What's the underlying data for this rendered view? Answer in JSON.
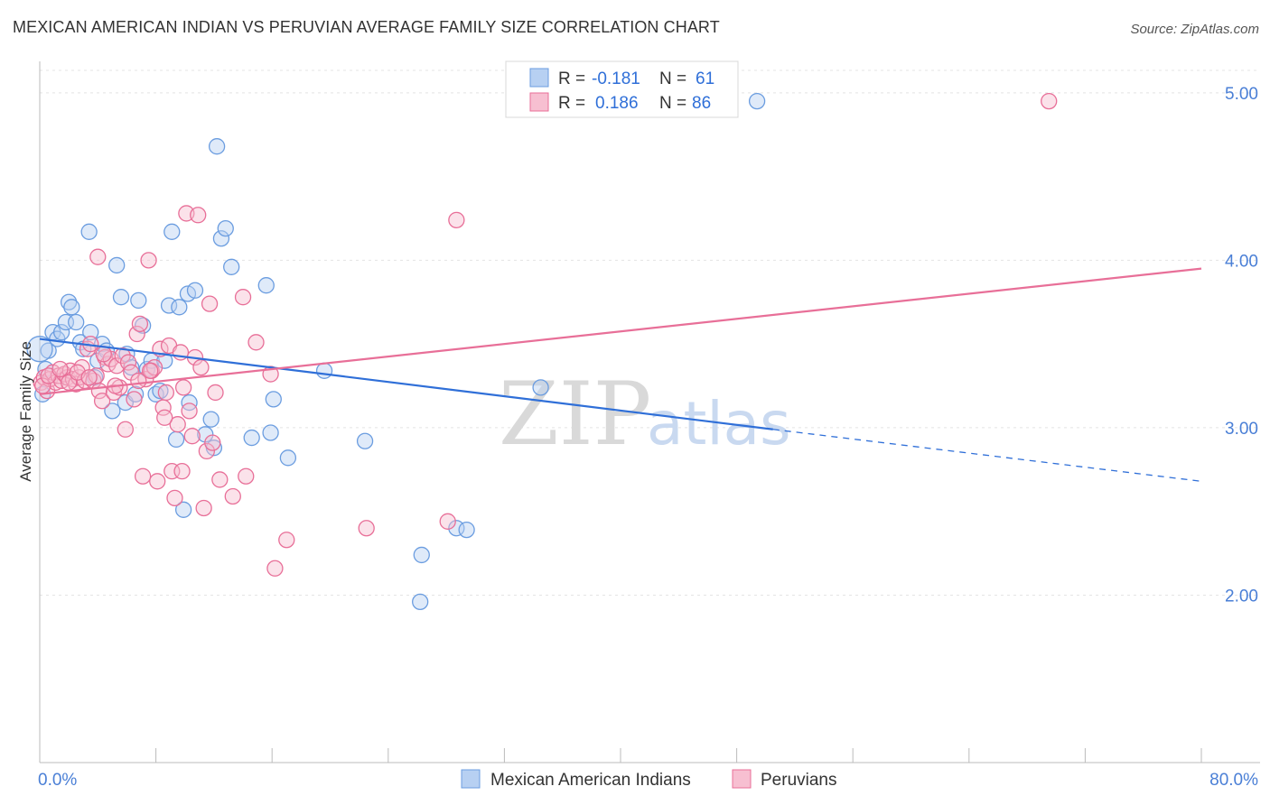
{
  "title": "MEXICAN AMERICAN INDIAN VS PERUVIAN AVERAGE FAMILY SIZE CORRELATION CHART",
  "source": "Source: ZipAtlas.com",
  "watermark": {
    "left": "ZIP",
    "right": "atlas"
  },
  "legend": {
    "rows": [
      {
        "r_label": "R =",
        "r_value": "-0.181",
        "n_label": "N =",
        "n_value": "61",
        "color": "#a9c8f0"
      },
      {
        "r_label": "R =",
        "r_value": "0.186",
        "n_label": "N =",
        "n_value": "86",
        "color": "#f7b8cc"
      }
    ]
  },
  "chart_data": {
    "type": "scatter",
    "title": "MEXICAN AMERICAN INDIAN VS PERUVIAN AVERAGE FAMILY SIZE CORRELATION CHART",
    "xlabel": "",
    "ylabel": "Average Family Size",
    "xlim": [
      0,
      80
    ],
    "ylim": [
      1.0,
      5.15
    ],
    "x_ticks": [
      "0.0%",
      "80.0%"
    ],
    "y_ticks": [
      "2.00",
      "3.00",
      "4.00",
      "5.00"
    ],
    "y_tick_values": [
      2.0,
      3.0,
      4.0,
      5.0
    ],
    "grid": true,
    "legend_position": "top-center",
    "series": [
      {
        "name": "Mexican American Indians",
        "color": "#6b9de0",
        "fill": "#b7d0f2",
        "trend": {
          "x0": 0.0,
          "y0": 3.53,
          "x1": 50.5,
          "y1": 2.99,
          "dash_x1": 80.0,
          "dash_y1": 2.68
        },
        "points": [
          [
            0.2,
            3.2
          ],
          [
            0.4,
            3.35
          ],
          [
            0.6,
            3.46
          ],
          [
            0.9,
            3.57
          ],
          [
            1.2,
            3.53
          ],
          [
            1.5,
            3.57
          ],
          [
            1.8,
            3.63
          ],
          [
            2.0,
            3.75
          ],
          [
            2.2,
            3.72
          ],
          [
            2.5,
            3.63
          ],
          [
            2.8,
            3.51
          ],
          [
            3.0,
            3.47
          ],
          [
            3.4,
            4.17
          ],
          [
            3.5,
            3.57
          ],
          [
            3.8,
            3.3
          ],
          [
            4.0,
            3.4
          ],
          [
            4.3,
            3.5
          ],
          [
            4.6,
            3.46
          ],
          [
            5.0,
            3.1
          ],
          [
            5.3,
            3.97
          ],
          [
            5.6,
            3.78
          ],
          [
            5.9,
            3.15
          ],
          [
            6.0,
            3.44
          ],
          [
            6.3,
            3.36
          ],
          [
            6.6,
            3.2
          ],
          [
            6.8,
            3.76
          ],
          [
            7.1,
            3.61
          ],
          [
            7.4,
            3.35
          ],
          [
            7.7,
            3.4
          ],
          [
            8.0,
            3.2
          ],
          [
            8.3,
            3.22
          ],
          [
            8.6,
            3.4
          ],
          [
            8.9,
            3.73
          ],
          [
            9.1,
            4.17
          ],
          [
            9.4,
            2.93
          ],
          [
            9.6,
            3.72
          ],
          [
            9.9,
            2.51
          ],
          [
            10.2,
            3.8
          ],
          [
            10.3,
            3.15
          ],
          [
            10.7,
            3.82
          ],
          [
            11.4,
            2.96
          ],
          [
            11.8,
            3.05
          ],
          [
            12.0,
            2.88
          ],
          [
            12.2,
            4.68
          ],
          [
            12.5,
            4.13
          ],
          [
            12.8,
            4.19
          ],
          [
            13.2,
            3.96
          ],
          [
            14.6,
            2.94
          ],
          [
            15.6,
            3.85
          ],
          [
            15.9,
            2.97
          ],
          [
            16.1,
            3.17
          ],
          [
            17.1,
            2.82
          ],
          [
            19.6,
            3.34
          ],
          [
            22.4,
            2.92
          ],
          [
            26.3,
            2.24
          ],
          [
            26.2,
            1.96
          ],
          [
            28.7,
            2.4
          ],
          [
            29.4,
            2.39
          ],
          [
            34.5,
            3.24
          ],
          [
            49.4,
            4.95
          ],
          [
            0.0,
            3.47
          ]
        ]
      },
      {
        "name": "Peruvians",
        "color": "#e86f98",
        "fill": "#f7bfd1",
        "trend": {
          "x0": 0.0,
          "y0": 3.2,
          "x1": 80.0,
          "y1": 3.95
        },
        "points": [
          [
            0.1,
            3.27
          ],
          [
            0.3,
            3.3
          ],
          [
            0.5,
            3.22
          ],
          [
            0.7,
            3.29
          ],
          [
            0.9,
            3.33
          ],
          [
            1.1,
            3.27
          ],
          [
            1.3,
            3.31
          ],
          [
            1.5,
            3.28
          ],
          [
            1.7,
            3.32
          ],
          [
            1.9,
            3.3
          ],
          [
            2.1,
            3.34
          ],
          [
            2.3,
            3.29
          ],
          [
            2.5,
            3.26
          ],
          [
            2.7,
            3.3
          ],
          [
            2.9,
            3.36
          ],
          [
            3.1,
            3.28
          ],
          [
            3.3,
            3.47
          ],
          [
            3.5,
            3.5
          ],
          [
            3.7,
            3.28
          ],
          [
            3.9,
            3.31
          ],
          [
            4.1,
            3.22
          ],
          [
            4.3,
            3.16
          ],
          [
            4.5,
            3.42
          ],
          [
            4.7,
            3.38
          ],
          [
            4.9,
            3.41
          ],
          [
            5.1,
            3.21
          ],
          [
            5.3,
            3.37
          ],
          [
            5.5,
            3.24
          ],
          [
            5.7,
            3.43
          ],
          [
            5.9,
            2.99
          ],
          [
            6.1,
            3.39
          ],
          [
            6.3,
            3.33
          ],
          [
            6.5,
            3.17
          ],
          [
            6.7,
            3.56
          ],
          [
            6.9,
            3.62
          ],
          [
            7.1,
            2.71
          ],
          [
            7.3,
            3.29
          ],
          [
            7.5,
            4.0
          ],
          [
            7.7,
            3.34
          ],
          [
            7.9,
            3.36
          ],
          [
            8.1,
            2.68
          ],
          [
            8.3,
            3.47
          ],
          [
            8.5,
            3.12
          ],
          [
            8.7,
            3.21
          ],
          [
            8.9,
            3.49
          ],
          [
            9.1,
            2.74
          ],
          [
            9.3,
            2.58
          ],
          [
            9.5,
            3.02
          ],
          [
            9.7,
            3.45
          ],
          [
            9.9,
            3.24
          ],
          [
            10.1,
            4.28
          ],
          [
            10.3,
            3.1
          ],
          [
            10.5,
            2.95
          ],
          [
            10.7,
            3.42
          ],
          [
            10.9,
            4.27
          ],
          [
            11.1,
            3.36
          ],
          [
            11.3,
            2.52
          ],
          [
            11.5,
            2.86
          ],
          [
            11.7,
            3.74
          ],
          [
            11.9,
            2.91
          ],
          [
            12.1,
            3.21
          ],
          [
            12.4,
            2.69
          ],
          [
            13.3,
            2.59
          ],
          [
            14.0,
            3.78
          ],
          [
            14.2,
            2.71
          ],
          [
            14.9,
            3.51
          ],
          [
            15.9,
            3.32
          ],
          [
            16.2,
            2.16
          ],
          [
            17.0,
            2.33
          ],
          [
            22.5,
            2.4
          ],
          [
            28.1,
            2.44
          ],
          [
            28.7,
            4.24
          ],
          [
            69.5,
            4.95
          ],
          [
            0.2,
            3.25
          ],
          [
            0.6,
            3.31
          ],
          [
            1.4,
            3.35
          ],
          [
            2.0,
            3.27
          ],
          [
            2.6,
            3.33
          ],
          [
            3.4,
            3.3
          ],
          [
            4.4,
            3.44
          ],
          [
            5.2,
            3.25
          ],
          [
            6.8,
            3.28
          ],
          [
            7.6,
            3.34
          ],
          [
            8.6,
            3.06
          ],
          [
            9.8,
            2.74
          ],
          [
            4.0,
            4.02
          ]
        ]
      }
    ]
  },
  "bottom_legend": [
    {
      "label": "Mexican American Indians",
      "color": "#a9c8f0"
    },
    {
      "label": "Peruvians",
      "color": "#f7b8cc"
    }
  ]
}
